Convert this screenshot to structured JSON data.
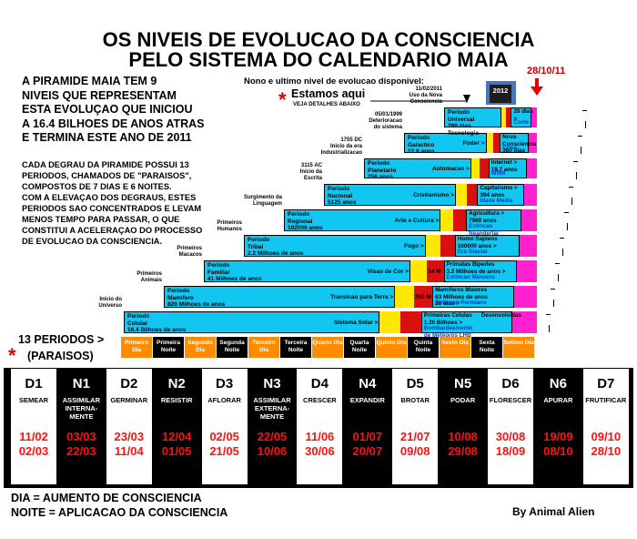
{
  "title": {
    "line1": "OS NIVEIS DE EVOLUCAO DA CONSCIENCIA",
    "line2": "PELO SISTEMA DO CALENDARIO MAIA"
  },
  "intro": {
    "lines": [
      "A PIRAMIDE MAIA TEM 9",
      "NIVEIS QUE REPRESENTAM",
      "ESTA EVOLUÇAO QUE INICIOU",
      "A 16.4 BILHOES DE ANOS ATRAS",
      "E TERMINA ESTE ANO DE 2011"
    ]
  },
  "detail": {
    "lines": [
      "CADA DEGRAU DA PIRAMIDE POSSUI 13",
      "PERIODOS, CHAMADOS DE \"PARAISOS\",",
      "COMPOSTOS DE 7 DIAS E 6 NOITES.",
      "COM A ELEVAÇAO DOS DEGRAUS, ESTES",
      "PERIODOS SAO CONCENTRADOS E LEVAM",
      "MENOS TEMPO PARA PASSAR, O QUE",
      "CONSTITUI A ACELERAÇAO DO PROCESSO",
      "DE EVOLUCAO DA CONSCIENCIA."
    ]
  },
  "annotations": {
    "ninth": "Nono e ultimo nivel de evolucao disponivel:",
    "estamos": "Estamos aqui",
    "veja": "VEJA DETALHES ABAIXO",
    "date_marker": "28/10/11",
    "year_box": "2012",
    "star": "*"
  },
  "pyramid": [
    {
      "left_label": [
        "Inicio do",
        "Universo"
      ],
      "period": [
        "Periodo",
        "Celular",
        "16.4 Bilhoes de anos"
      ],
      "middle": "Sistema Solar >",
      "red_label": "",
      "right": [
        "Primeiras Celulas",
        "1.26 Bilhoes >"
      ],
      "right_blue": [
        "Bombardeamento",
        "de Meteoros LHB"
      ],
      "extra": "Desenvolvidas"
    },
    {
      "left_label": [
        "Primeiros",
        "Animais"
      ],
      "period": [
        "Periodo",
        "Mamifero",
        "820 Milhoes de anos"
      ],
      "middle": "Transicao para Terra >",
      "red_label": "250 M",
      "right": [
        "Mamiferos Maiores",
        "63 Milhoes de anos",
        "20 dias >"
      ],
      "right_blue": [
        "Extincao Permiano"
      ],
      "extra": ""
    },
    {
      "left_label": [
        "Primeiros",
        "Macacos"
      ],
      "period": [
        "Periodo",
        "Familiar",
        "41 Milhoes de anos"
      ],
      "middle": "Visao de Cor >",
      "red_label": "14 M",
      "right": [
        "Primatas Bipedes",
        "3.2 Milhoes de anos >"
      ],
      "right_blue": [
        "Extincao Mioceno"
      ],
      "extra": ""
    },
    {
      "left_label": [
        "Primeiros",
        "Humanos"
      ],
      "period": [
        "Periodo",
        "Tribal",
        "2.2 Milhoes de anos"
      ],
      "middle": "Fogo >",
      "red_label": "",
      "right": [
        "Homo Sapiens",
        "160000 anos >"
      ],
      "right_blue": [
        "Era Glacial"
      ],
      "extra": ""
    },
    {
      "left_label": [
        "Surgimento da",
        "Linguagem"
      ],
      "period": [
        "Periodo",
        "Regional",
        "102000 anos"
      ],
      "middle": "Arte e Cultura >",
      "red_label": "",
      "right": [
        "Agricultura >",
        "7980 anos"
      ],
      "right_blue": [
        "Extincao",
        "Neandertal"
      ],
      "extra": ""
    },
    {
      "left_label": [
        "3115 AC",
        "Inicio da",
        "Escrita"
      ],
      "period": [
        "Periodo",
        "Nacional",
        "5125 anos"
      ],
      "middle": "Cristianismo >",
      "red_label": "",
      "right": [
        "Capitalismo >",
        "394 anos"
      ],
      "right_blue": [
        "Idade Media"
      ],
      "extra": ""
    },
    {
      "left_label": [
        "1755 DC",
        "Inicio da era",
        "Industrializacao"
      ],
      "period": [
        "Periodo",
        "Planetario",
        "256 anos"
      ],
      "middle": "Automacao >",
      "red_label": "",
      "right": [
        "Internet >",
        "19.7 anos"
      ],
      "right_blue": [
        "WWII"
      ],
      "extra": ""
    },
    {
      "left_label": [
        "05/01/1999",
        "Deterioracao",
        "do sistema"
      ],
      "period": [
        "Periodo",
        "Galactico",
        "12.8 anos"
      ],
      "middle": "Poder >",
      "red_label": "",
      "right": [
        "Nova",
        "Consciencia",
        "360 dias"
      ],
      "right_blue": [
        "Crise"
      ],
      "extra": ""
    },
    {
      "left_label": [
        "11/02/2011",
        "Uso da Nova",
        "Consciencia"
      ],
      "period": [
        "Periodo",
        "Universal",
        "260 dias",
        "Tecnologia"
      ],
      "middle": "",
      "red_label": "",
      "right": [
        "20 dias >"
      ],
      "right_blue": [
        "Corte"
      ],
      "extra": ""
    }
  ],
  "periods_row": {
    "label_line1": "13 PERIODOS",
    "label_line2": "(PARAISOS)",
    "arrow": ">",
    "cells": [
      {
        "t": "Primeiro Dia",
        "kind": "day"
      },
      {
        "t": "Primeira Noite",
        "kind": "night"
      },
      {
        "t": "Segundo Dia",
        "kind": "day"
      },
      {
        "t": "Segunda Noite",
        "kind": "night"
      },
      {
        "t": "Terceiro Dia",
        "kind": "day"
      },
      {
        "t": "Terceira Noite",
        "kind": "night"
      },
      {
        "t": "Quarto Dia",
        "kind": "day"
      },
      {
        "t": "Quarta Noite",
        "kind": "night"
      },
      {
        "t": "Quinto Dia",
        "kind": "day"
      },
      {
        "t": "Quinta Noite",
        "kind": "night"
      },
      {
        "t": "Sexto Dia",
        "kind": "day"
      },
      {
        "t": "Sexta Noite",
        "kind": "night"
      },
      {
        "t": "Setimo Dia",
        "kind": "day"
      }
    ]
  },
  "table": [
    {
      "code": "D1",
      "name": "SEMEAR",
      "d1": "11/02",
      "d2": "02/03",
      "kind": "day"
    },
    {
      "code": "N1",
      "name": "ASSIMILAR INTERNA-MENTE",
      "d1": "03/03",
      "d2": "22/03",
      "kind": "night"
    },
    {
      "code": "D2",
      "name": "GERMINAR",
      "d1": "23/03",
      "d2": "11/04",
      "kind": "day"
    },
    {
      "code": "N2",
      "name": "RESISTIR",
      "d1": "12/04",
      "d2": "01/05",
      "kind": "night"
    },
    {
      "code": "D3",
      "name": "AFLORAR",
      "d1": "02/05",
      "d2": "21/05",
      "kind": "day"
    },
    {
      "code": "N3",
      "name": "ASSIMILAR EXTERNA-MENTE",
      "d1": "22/05",
      "d2": "10/06",
      "kind": "night"
    },
    {
      "code": "D4",
      "name": "CRESCER",
      "d1": "11/06",
      "d2": "30/06",
      "kind": "day"
    },
    {
      "code": "N4",
      "name": "EXPANDIR",
      "d1": "01/07",
      "d2": "20/07",
      "kind": "night"
    },
    {
      "code": "D5",
      "name": "BROTAR",
      "d1": "21/07",
      "d2": "09/08",
      "kind": "day"
    },
    {
      "code": "N5",
      "name": "PODAR",
      "d1": "10/08",
      "d2": "29/08",
      "kind": "night"
    },
    {
      "code": "D6",
      "name": "FLORESCER",
      "d1": "30/08",
      "d2": "18/09",
      "kind": "day"
    },
    {
      "code": "N6",
      "name": "APURAR",
      "d1": "19/09",
      "d2": "08/10",
      "kind": "night"
    },
    {
      "code": "D7",
      "name": "FRUTIFICAR",
      "d1": "09/10",
      "d2": "28/10",
      "kind": "day"
    }
  ],
  "legend": {
    "dia": "DIA = AUMENTO DE CONSCIENCIA",
    "noite": "NOITE = APLICACAO DA CONSCIENCIA"
  },
  "author": "By Animal Alien",
  "colors": {
    "cyan": "#11c6f0",
    "yellow": "#ffe800",
    "red": "#d81010",
    "magenta": "#ff20d0",
    "orange": "#ff8c00",
    "date_red": "#ff1010"
  }
}
